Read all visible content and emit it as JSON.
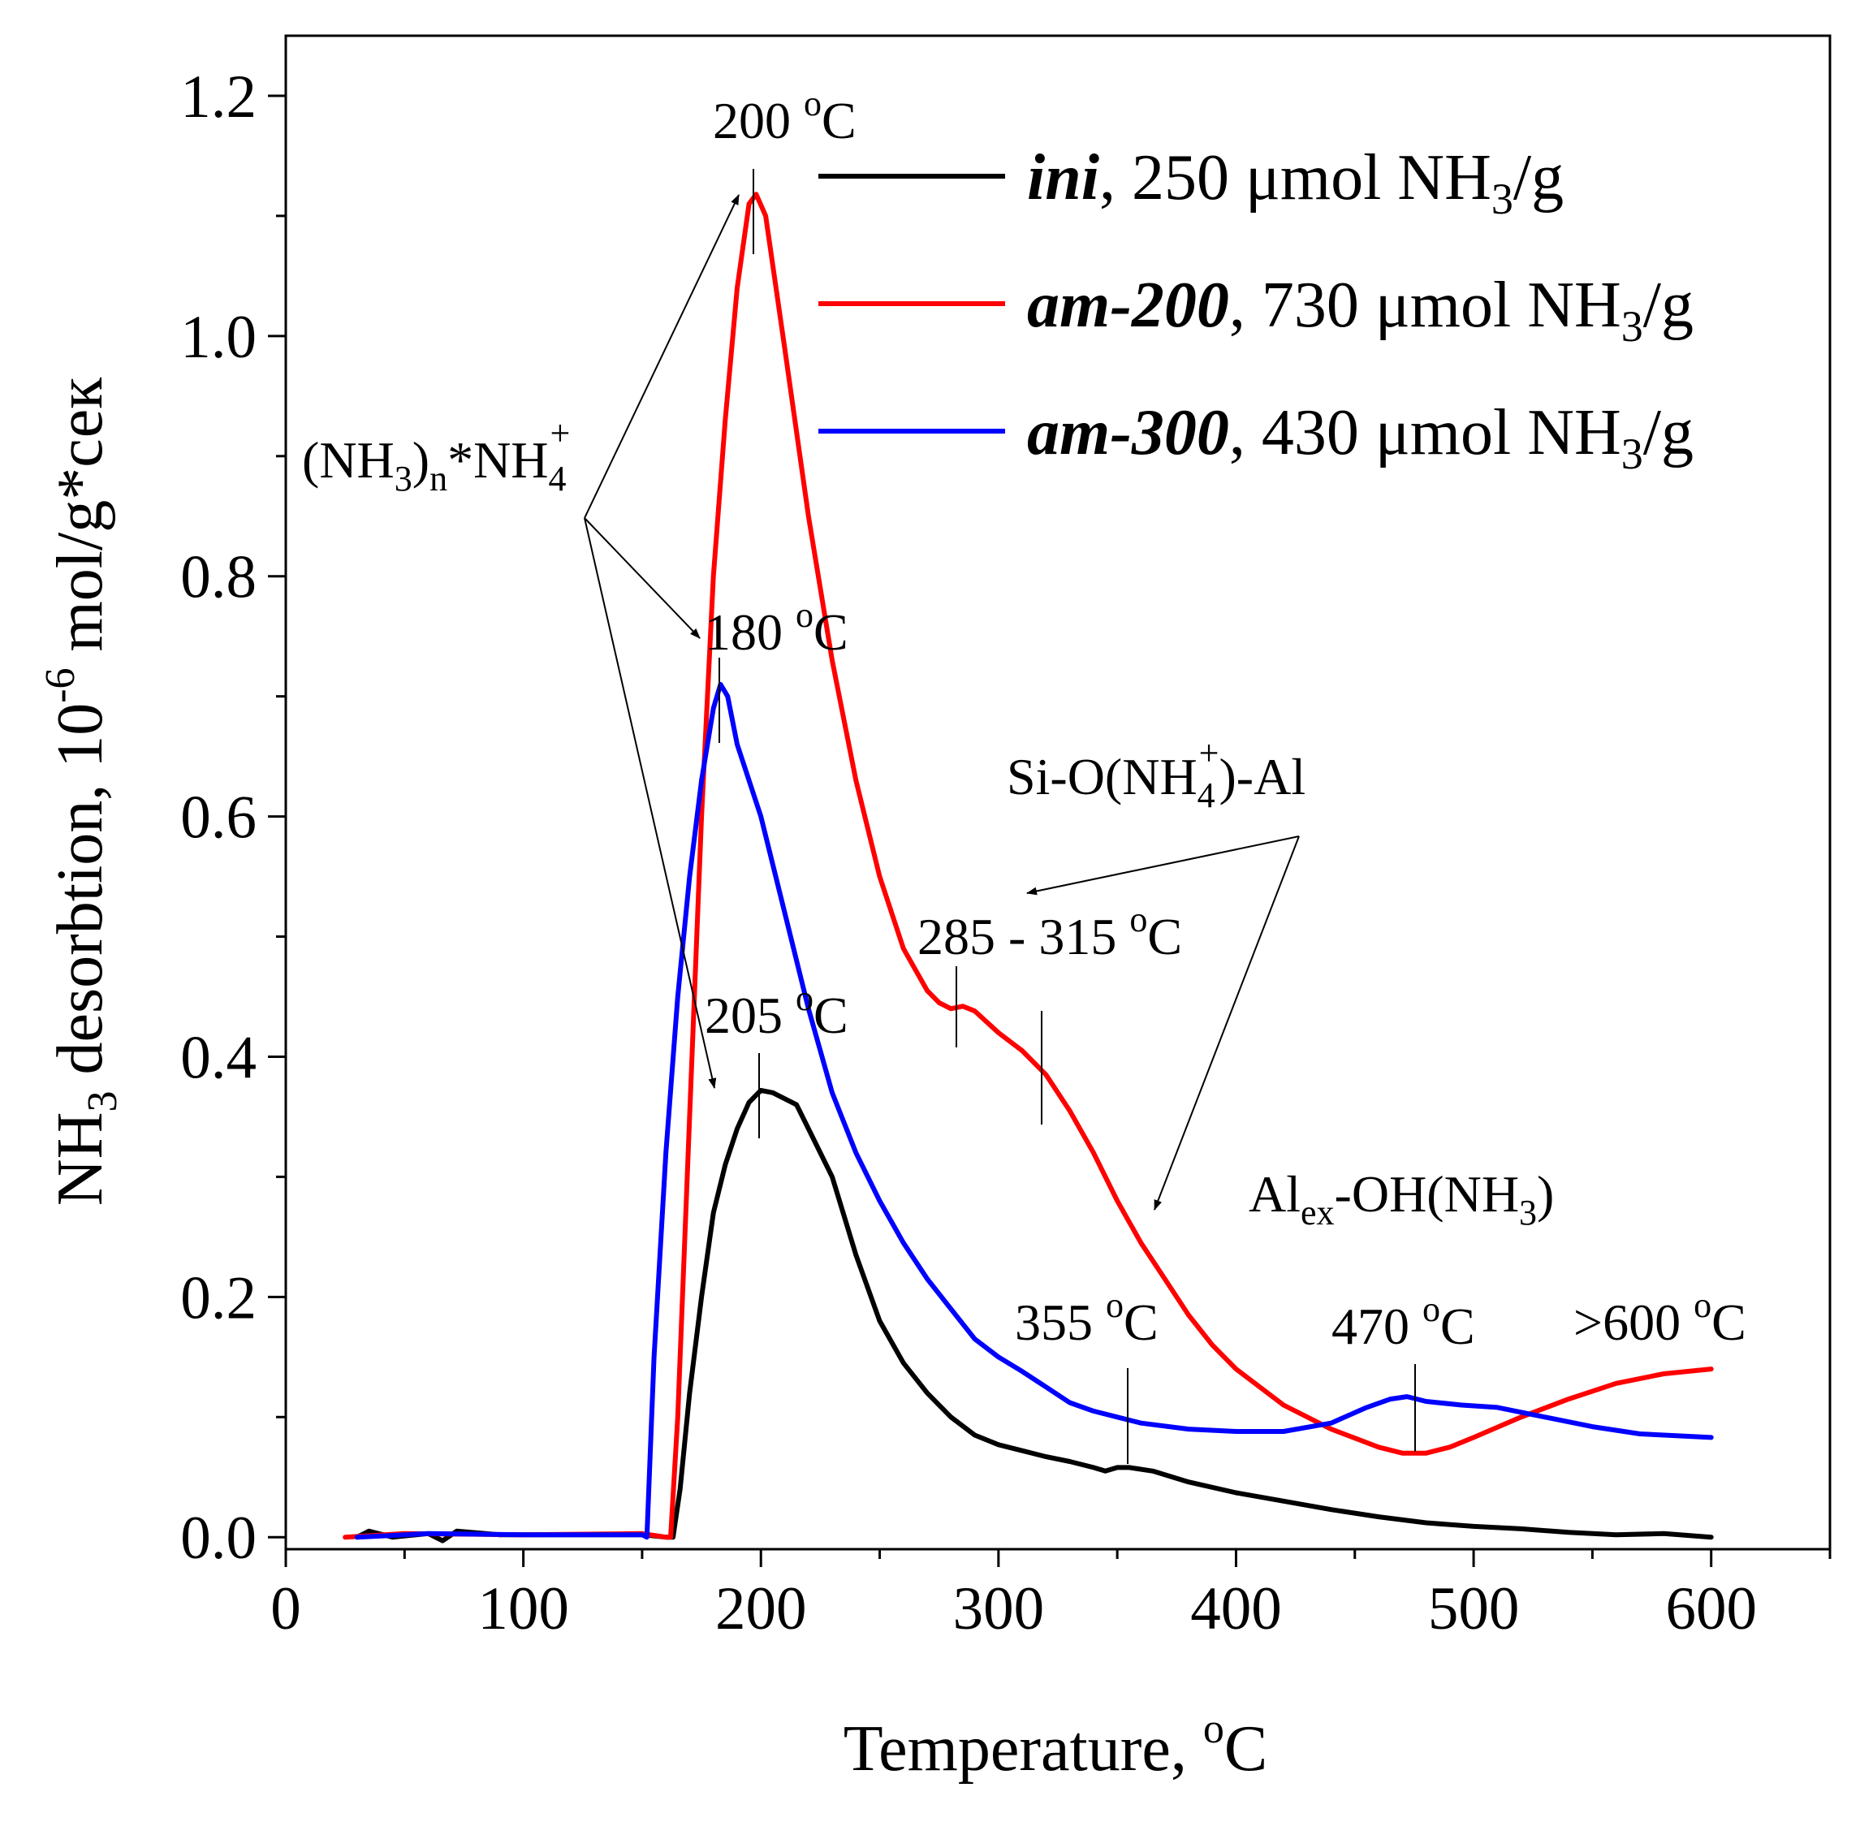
{
  "chart_data": {
    "type": "line",
    "xlabel": "Temperature, ",
    "xlabel_sup": "o",
    "xlabel_unit": "C",
    "ylabel_pre": "NH",
    "ylabel_sub": "3",
    "ylabel_mid": " desorbtion, 10",
    "ylabel_sup": "-6",
    "ylabel_post": " mol/g*сек",
    "xlim": [
      0,
      650
    ],
    "ylim": [
      -0.01,
      1.25
    ],
    "x_ticks": [
      0,
      100,
      200,
      300,
      400,
      500,
      600
    ],
    "x_tick_labels": [
      "0",
      "100",
      "200",
      "300",
      "400",
      "500",
      "600"
    ],
    "x_minor_ticks": [
      50,
      150,
      250,
      350,
      450,
      550,
      650
    ],
    "y_ticks": [
      0.0,
      0.2,
      0.4,
      0.6,
      0.8,
      1.0,
      1.2
    ],
    "y_tick_labels": [
      "0.0",
      "0.2",
      "0.4",
      "0.6",
      "0.8",
      "1.0",
      "1.2"
    ],
    "y_minor_ticks": [
      0.1,
      0.3,
      0.5,
      0.7,
      0.9,
      1.1
    ],
    "grid": false,
    "legend_position": "top-right",
    "series": [
      {
        "name": "ini",
        "legend_rest": ", 250 μmol NH",
        "legend_sub": "3",
        "legend_tail": "/g",
        "color": "#000000",
        "points": [
          [
            30,
            0.0
          ],
          [
            35,
            0.005
          ],
          [
            45,
            0.0
          ],
          [
            60,
            0.003
          ],
          [
            66,
            -0.003
          ],
          [
            72,
            0.005
          ],
          [
            90,
            0.002
          ],
          [
            120,
            0.002
          ],
          [
            150,
            0.002
          ],
          [
            160,
            0.0
          ],
          [
            163,
            0.0
          ],
          [
            166,
            0.04
          ],
          [
            170,
            0.12
          ],
          [
            175,
            0.2
          ],
          [
            180,
            0.27
          ],
          [
            185,
            0.31
          ],
          [
            190,
            0.34
          ],
          [
            195,
            0.362
          ],
          [
            200,
            0.372
          ],
          [
            205,
            0.37
          ],
          [
            210,
            0.365
          ],
          [
            215,
            0.36
          ],
          [
            220,
            0.34
          ],
          [
            230,
            0.3
          ],
          [
            240,
            0.235
          ],
          [
            250,
            0.18
          ],
          [
            260,
            0.145
          ],
          [
            270,
            0.12
          ],
          [
            280,
            0.1
          ],
          [
            290,
            0.085
          ],
          [
            300,
            0.077
          ],
          [
            310,
            0.072
          ],
          [
            320,
            0.067
          ],
          [
            330,
            0.063
          ],
          [
            340,
            0.058
          ],
          [
            345,
            0.055
          ],
          [
            350,
            0.058
          ],
          [
            355,
            0.058
          ],
          [
            365,
            0.055
          ],
          [
            380,
            0.046
          ],
          [
            400,
            0.037
          ],
          [
            420,
            0.03
          ],
          [
            440,
            0.023
          ],
          [
            460,
            0.017
          ],
          [
            480,
            0.012
          ],
          [
            500,
            0.009
          ],
          [
            520,
            0.007
          ],
          [
            540,
            0.004
          ],
          [
            560,
            0.002
          ],
          [
            580,
            0.003
          ],
          [
            600,
            0.0
          ]
        ]
      },
      {
        "name": "am-200",
        "legend_rest": ", 730 μmol NH",
        "legend_sub": "3",
        "legend_tail": "/g",
        "color": "#ff0000",
        "points": [
          [
            25,
            0.0
          ],
          [
            50,
            0.003
          ],
          [
            100,
            0.002
          ],
          [
            150,
            0.003
          ],
          [
            160,
            0.0
          ],
          [
            162,
            0.0
          ],
          [
            165,
            0.1
          ],
          [
            170,
            0.35
          ],
          [
            175,
            0.6
          ],
          [
            180,
            0.8
          ],
          [
            185,
            0.93
          ],
          [
            190,
            1.04
          ],
          [
            195,
            1.11
          ],
          [
            198,
            1.118
          ],
          [
            202,
            1.1
          ],
          [
            210,
            0.99
          ],
          [
            220,
            0.85
          ],
          [
            230,
            0.73
          ],
          [
            240,
            0.63
          ],
          [
            250,
            0.55
          ],
          [
            260,
            0.49
          ],
          [
            270,
            0.455
          ],
          [
            275,
            0.445
          ],
          [
            280,
            0.44
          ],
          [
            285,
            0.442
          ],
          [
            290,
            0.438
          ],
          [
            300,
            0.42
          ],
          [
            310,
            0.405
          ],
          [
            320,
            0.385
          ],
          [
            330,
            0.355
          ],
          [
            340,
            0.32
          ],
          [
            350,
            0.28
          ],
          [
            360,
            0.245
          ],
          [
            370,
            0.215
          ],
          [
            380,
            0.185
          ],
          [
            390,
            0.16
          ],
          [
            400,
            0.14
          ],
          [
            420,
            0.11
          ],
          [
            440,
            0.09
          ],
          [
            460,
            0.075
          ],
          [
            470,
            0.07
          ],
          [
            480,
            0.07
          ],
          [
            490,
            0.075
          ],
          [
            500,
            0.083
          ],
          [
            520,
            0.1
          ],
          [
            540,
            0.115
          ],
          [
            560,
            0.128
          ],
          [
            580,
            0.136
          ],
          [
            600,
            0.14
          ]
        ]
      },
      {
        "name": "am-300",
        "legend_rest": ", 430 μmol NH",
        "legend_sub": "3",
        "legend_tail": "/g",
        "color": "#0000ff",
        "points": [
          [
            30,
            0.0
          ],
          [
            60,
            0.003
          ],
          [
            100,
            0.002
          ],
          [
            140,
            0.002
          ],
          [
            150,
            0.002
          ],
          [
            152,
            0.0
          ],
          [
            155,
            0.15
          ],
          [
            160,
            0.32
          ],
          [
            165,
            0.45
          ],
          [
            170,
            0.55
          ],
          [
            175,
            0.63
          ],
          [
            180,
            0.69
          ],
          [
            183,
            0.71
          ],
          [
            186,
            0.7
          ],
          [
            190,
            0.66
          ],
          [
            200,
            0.6
          ],
          [
            210,
            0.52
          ],
          [
            220,
            0.44
          ],
          [
            230,
            0.37
          ],
          [
            240,
            0.32
          ],
          [
            250,
            0.28
          ],
          [
            260,
            0.245
          ],
          [
            270,
            0.215
          ],
          [
            280,
            0.19
          ],
          [
            290,
            0.165
          ],
          [
            300,
            0.15
          ],
          [
            310,
            0.138
          ],
          [
            320,
            0.125
          ],
          [
            330,
            0.112
          ],
          [
            340,
            0.105
          ],
          [
            350,
            0.1
          ],
          [
            360,
            0.095
          ],
          [
            380,
            0.09
          ],
          [
            400,
            0.088
          ],
          [
            420,
            0.088
          ],
          [
            440,
            0.095
          ],
          [
            455,
            0.108
          ],
          [
            465,
            0.115
          ],
          [
            472,
            0.117
          ],
          [
            480,
            0.113
          ],
          [
            495,
            0.11
          ],
          [
            510,
            0.108
          ],
          [
            530,
            0.1
          ],
          [
            550,
            0.092
          ],
          [
            570,
            0.086
          ],
          [
            600,
            0.083
          ]
        ]
      }
    ],
    "annotations": {
      "peak_200": {
        "main": "200 ",
        "sup": "o",
        "tail": "C"
      },
      "peak_180": {
        "main": "180 ",
        "sup": "o",
        "tail": "C"
      },
      "peak_205": {
        "main": "205 ",
        "sup": "o",
        "tail": "C"
      },
      "range_285_315": {
        "main": "285 - 315 ",
        "sup": "o",
        "tail": "C"
      },
      "peak_355": {
        "main": "355 ",
        "sup": "o",
        "tail": "C"
      },
      "peak_470": {
        "main": "470 ",
        "sup": "o",
        "tail": "C"
      },
      "peak_600": {
        "main": ">600 ",
        "sup": "o",
        "tail": "C"
      },
      "nh3_cluster": {
        "a": "(NH",
        "sub1": "3",
        "b": ")",
        "sub2": "n",
        "c": "*NH",
        "sub3": "4",
        "sup": "+"
      },
      "si_o_al": {
        "a": "Si-O(NH",
        "sub": "4",
        "sup": "+",
        "b": ")-Al"
      },
      "al_ex": {
        "a": "Al",
        "sub1": "ex",
        "b": "-OH(NH",
        "sub2": "3",
        "c": ")"
      }
    }
  }
}
